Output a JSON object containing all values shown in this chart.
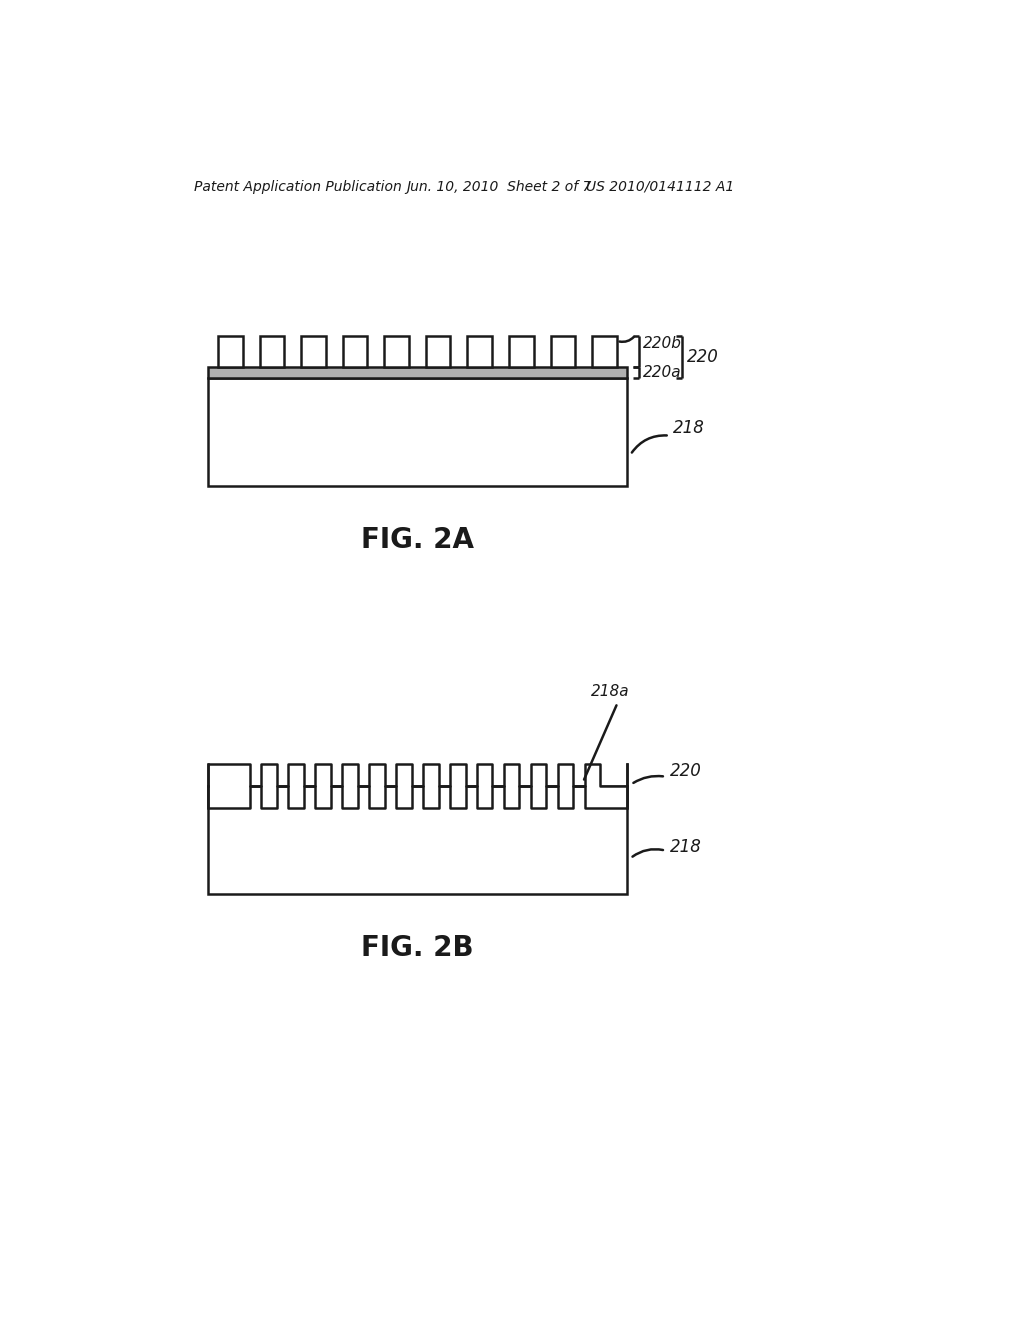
{
  "bg_color": "#ffffff",
  "line_color": "#1a1a1a",
  "line_width": 1.8,
  "header_left": "Patent Application Publication",
  "header_mid": "Jun. 10, 2010  Sheet 2 of 7",
  "header_right": "US 2010/0141112 A1",
  "fig2a_label": "FIG. 2A",
  "fig2b_label": "FIG. 2B"
}
